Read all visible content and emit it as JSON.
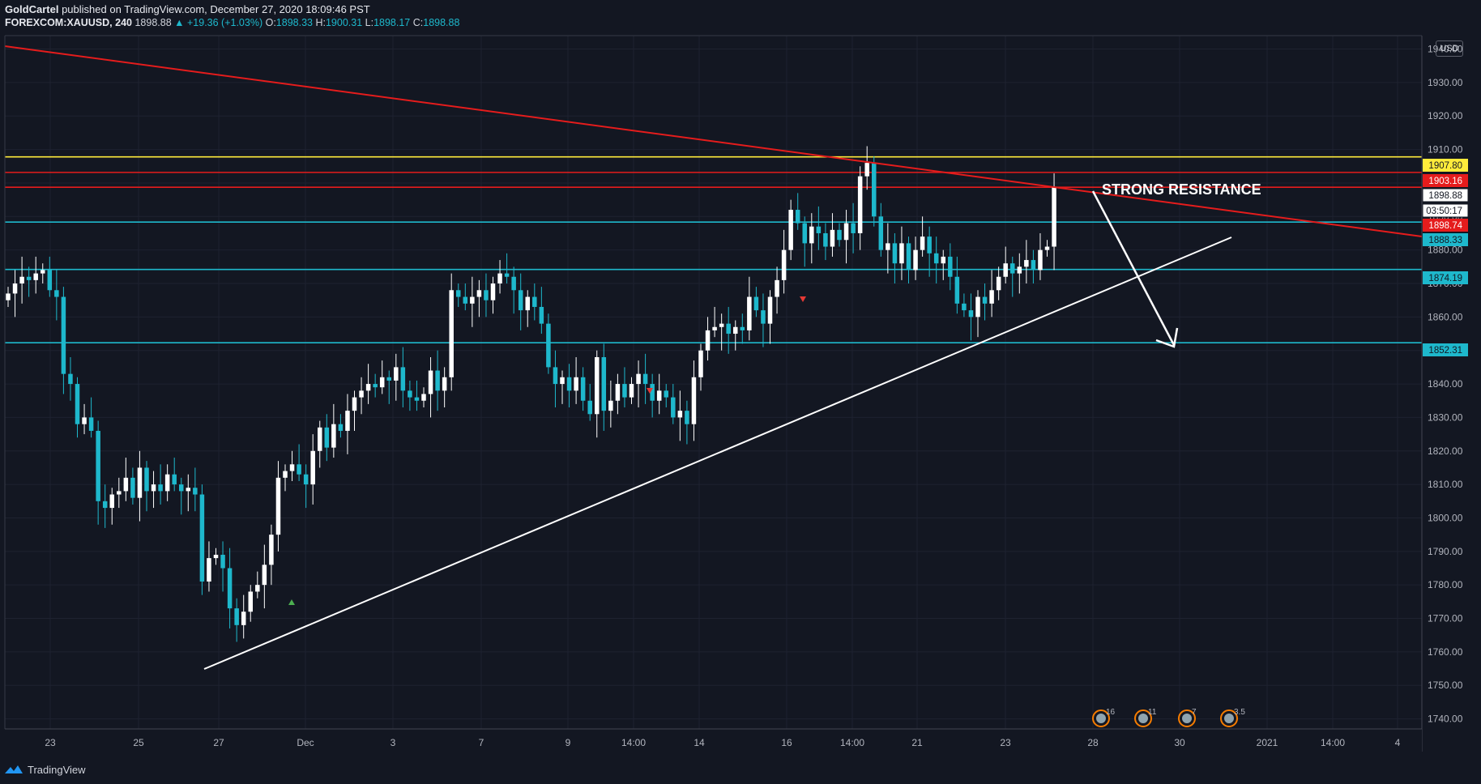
{
  "header": {
    "author": "GoldCartel",
    "published_text": " published on TradingView.com, December 27, 2020 18:09:46 PST",
    "symbol": "FOREXCOM:XAUUSD, 240",
    "last": "1898.88",
    "change": "▲ +19.36 (+1.03%)",
    "o_label": "O:",
    "o": "1898.33",
    "h_label": "H:",
    "h": "1900.31",
    "l_label": "L:",
    "l": "1898.17",
    "c_label": "C:",
    "c": "1898.88"
  },
  "currency": "USD",
  "brand": "TradingView",
  "colors": {
    "bg": "#131722",
    "up": "#ffffff",
    "down": "#1eb8cc",
    "yellow": "#ffeb3b",
    "red": "#e51c1c",
    "cyan": "#1eb8cc",
    "grid": "#1e2230"
  },
  "chart_data": {
    "type": "candlestick",
    "y_axis_ticks": [
      "1940.00",
      "1930.00",
      "1920.00",
      "1910.00",
      "1900.00",
      "1890.00",
      "1880.00",
      "1870.00",
      "1860.00",
      "1850.00",
      "1840.00",
      "1830.00",
      "1820.00",
      "1810.00",
      "1800.00",
      "1790.00",
      "1780.00",
      "1770.00",
      "1760.00",
      "1750.00",
      "1740.00"
    ],
    "ylim": [
      1737,
      1944
    ],
    "x_axis_ticks": [
      "23",
      "25",
      "27",
      "Dec",
      "3",
      "7",
      "9",
      "14:00",
      "14",
      "16",
      "14:00",
      "21",
      "23",
      "28",
      "30",
      "2021",
      "14:00",
      "4"
    ],
    "annotation": "STRONG RESISTANCE",
    "price_labels": [
      {
        "value": "1907.80",
        "kind": "yellow"
      },
      {
        "value": "1903.16",
        "kind": "red"
      },
      {
        "value": "1898.88",
        "kind": "last"
      },
      {
        "value": "03:50:17",
        "kind": "timer"
      },
      {
        "value": "1898.74",
        "kind": "red"
      },
      {
        "value": "1888.33",
        "kind": "cyan"
      },
      {
        "value": "1874.19",
        "kind": "cyan"
      },
      {
        "value": "1852.31",
        "kind": "cyan"
      }
    ],
    "horizontal_levels": [
      {
        "price": 1907.8,
        "kind": "yellow"
      },
      {
        "price": 1903.16,
        "kind": "red"
      },
      {
        "price": 1898.74,
        "kind": "red"
      },
      {
        "price": 1888.33,
        "kind": "cyan"
      },
      {
        "price": 1874.19,
        "kind": "cyan"
      },
      {
        "price": 1852.31,
        "kind": "cyan"
      }
    ],
    "events": [
      "16",
      "11",
      "7",
      "3.5"
    ],
    "closes": [
      1867,
      1870,
      1872,
      1871,
      1873,
      1874,
      1868,
      1866,
      1843,
      1840,
      1828,
      1830,
      1826,
      1805,
      1803,
      1807,
      1808,
      1812,
      1806,
      1815,
      1808,
      1810,
      1808,
      1813,
      1810,
      1808,
      1809,
      1807,
      1781,
      1788,
      1789,
      1785,
      1773,
      1768,
      1772,
      1778,
      1780,
      1786,
      1795,
      1812,
      1814,
      1816,
      1813,
      1810,
      1820,
      1827,
      1821,
      1828,
      1826,
      1832,
      1836,
      1838,
      1840,
      1839,
      1842,
      1841,
      1845,
      1838,
      1836,
      1835,
      1837,
      1844,
      1838,
      1842,
      1868,
      1866,
      1864,
      1866,
      1868,
      1865,
      1870,
      1873,
      1872,
      1868,
      1862,
      1866,
      1863,
      1858,
      1845,
      1840,
      1842,
      1838,
      1842,
      1835,
      1831,
      1848,
      1832,
      1835,
      1840,
      1836,
      1840,
      1843,
      1840,
      1835,
      1838,
      1836,
      1830,
      1832,
      1828,
      1842,
      1850,
      1856,
      1857,
      1858,
      1855,
      1857,
      1856,
      1866,
      1862,
      1858,
      1866,
      1871,
      1880,
      1892,
      1888,
      1882,
      1887,
      1885,
      1881,
      1886,
      1883,
      1888,
      1885,
      1902,
      1906,
      1890,
      1880,
      1882,
      1876,
      1882,
      1874,
      1880,
      1884,
      1879,
      1876,
      1878,
      1872,
      1864,
      1862,
      1860,
      1866,
      1864,
      1868,
      1872,
      1876,
      1873,
      1875,
      1877,
      1874,
      1880,
      1881,
      1898.88
    ]
  }
}
